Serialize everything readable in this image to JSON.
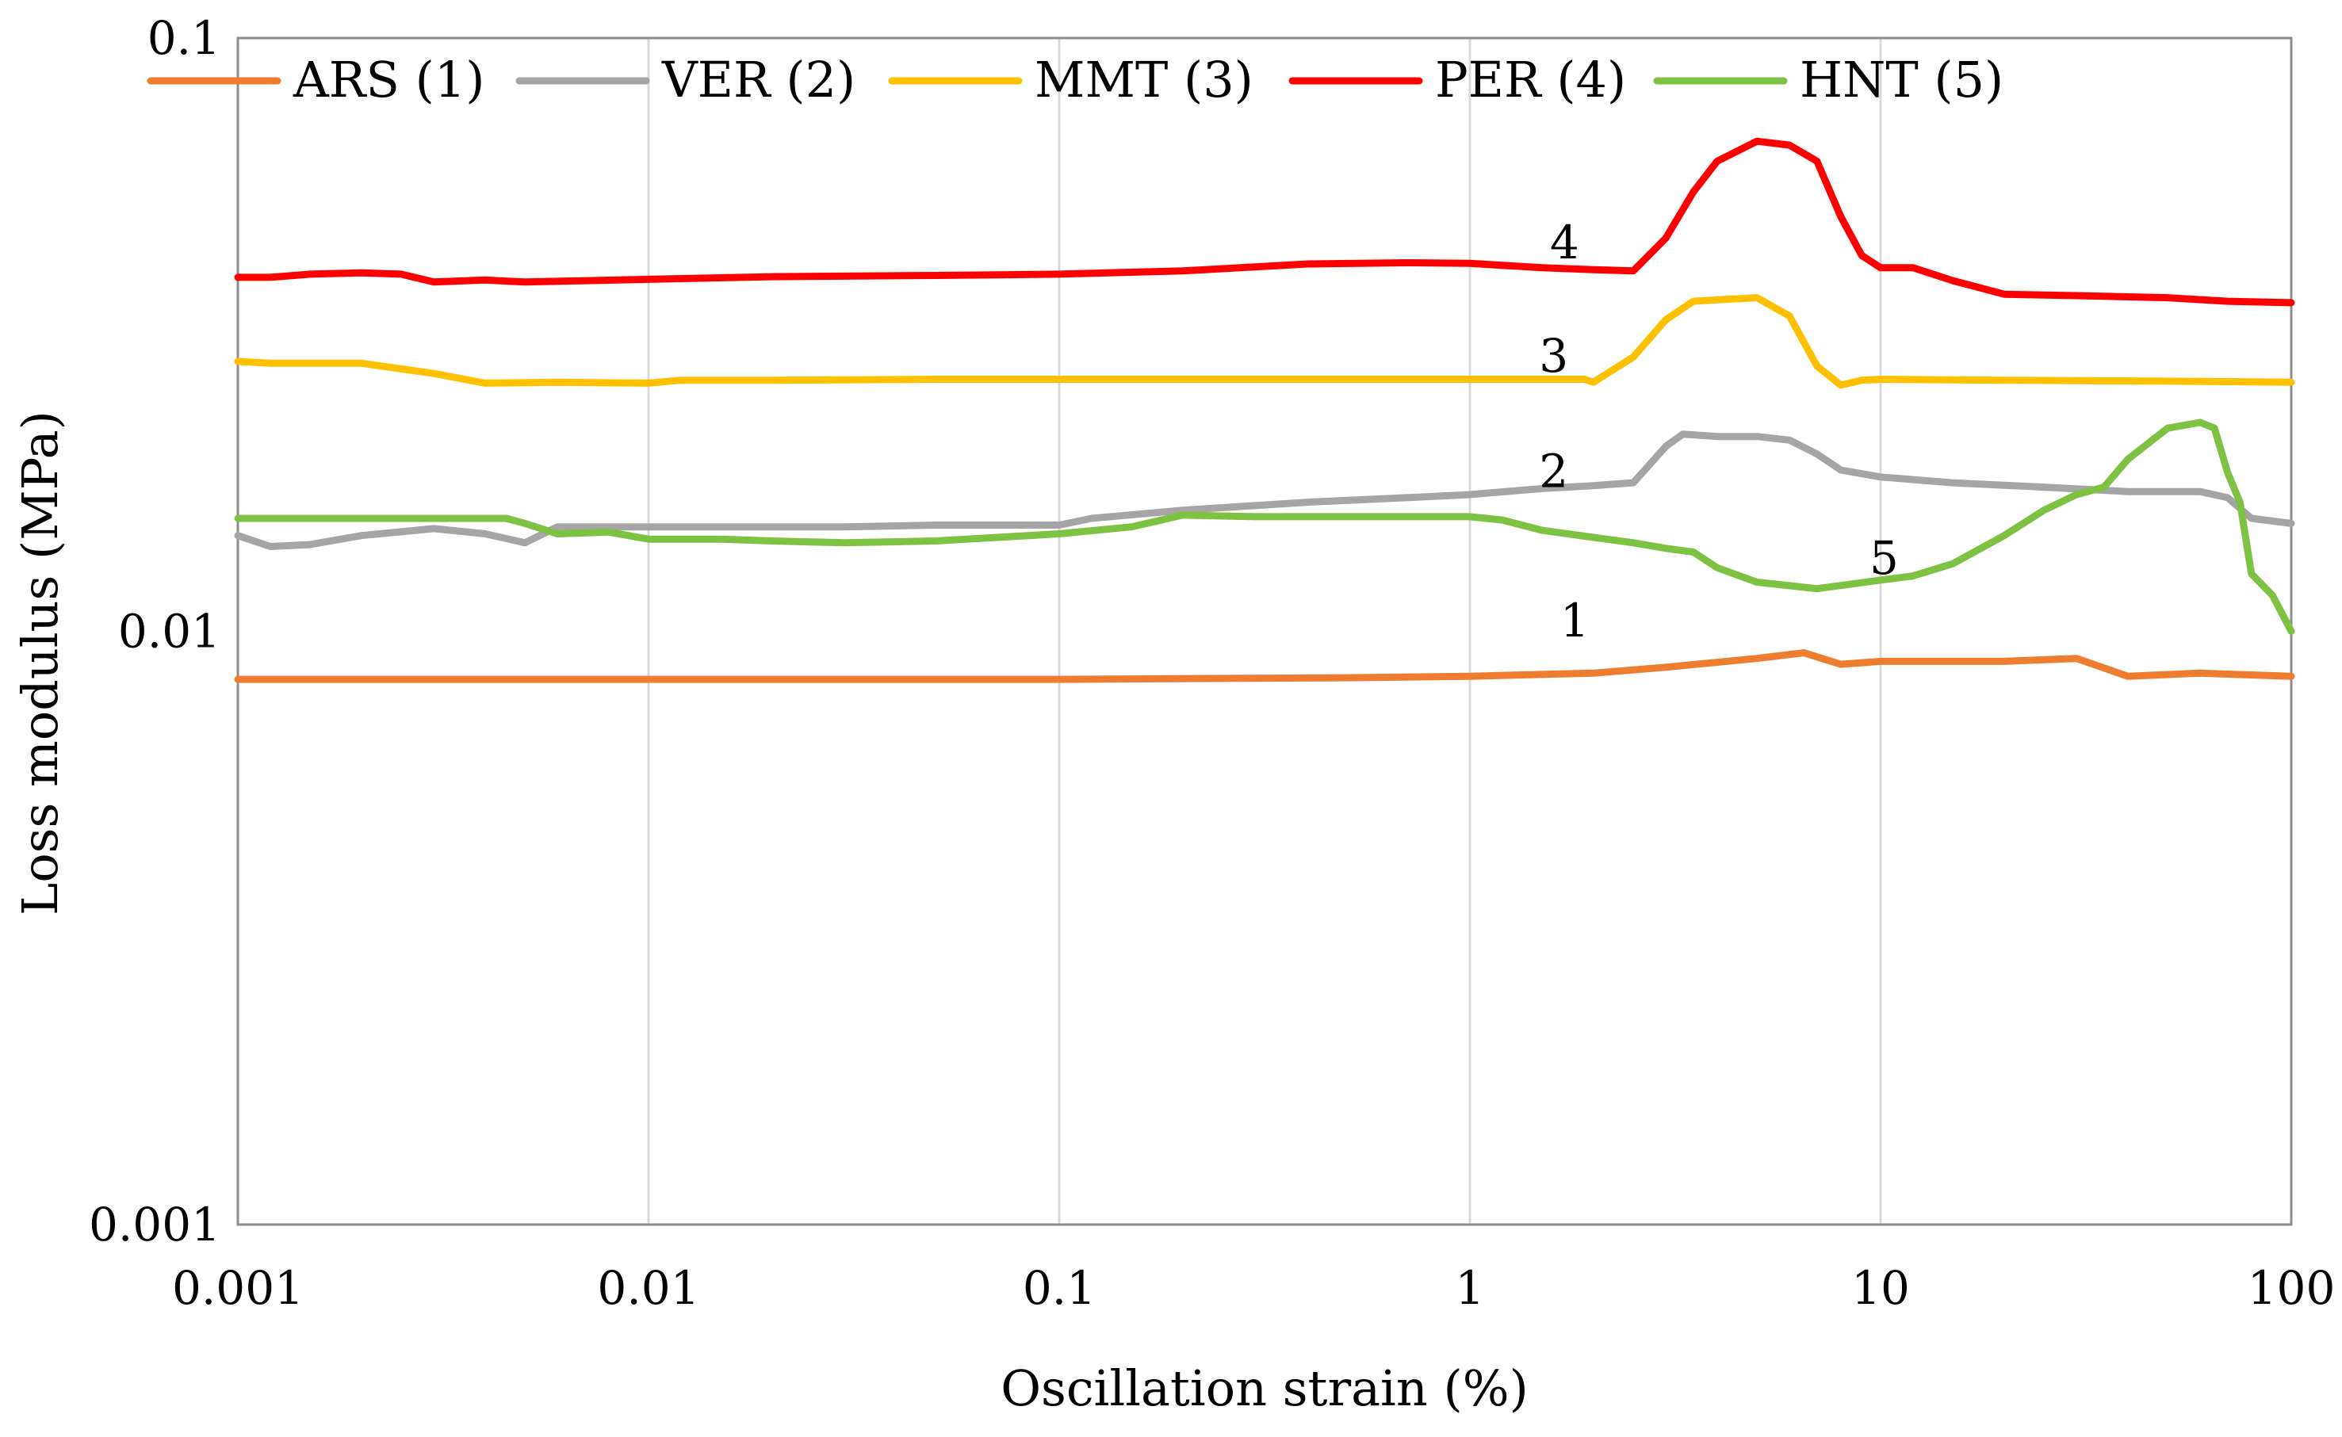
{
  "chart_data": {
    "type": "line",
    "xscale": "log",
    "yscale": "log",
    "xlim": [
      0.001,
      100
    ],
    "ylim": [
      0.001,
      0.1
    ],
    "xlabel": "Oscillation strain (%)",
    "ylabel": "Loss modulus (MPa)",
    "x_ticks": [
      0.001,
      0.01,
      0.1,
      1,
      10,
      100
    ],
    "x_tick_labels": [
      "0.001",
      "0.01",
      "0.1",
      "1",
      "10",
      "100"
    ],
    "y_ticks": [
      0.001,
      0.01,
      0.1
    ],
    "y_tick_labels": [
      "0.001",
      "0.01",
      "0.1"
    ],
    "grid": "vertical",
    "legend_position": "top",
    "series": [
      {
        "name": "ARS (1)",
        "color": "#ED7D31",
        "curve_label": "1",
        "label_at": [
          1.8,
          0.0098
        ],
        "points": [
          [
            0.001,
            0.0083
          ],
          [
            0.1,
            0.0083
          ],
          [
            0.5,
            0.00835
          ],
          [
            1,
            0.0084
          ],
          [
            2,
            0.0085
          ],
          [
            3,
            0.0087
          ],
          [
            5,
            0.009
          ],
          [
            6.5,
            0.0092
          ],
          [
            8,
            0.0088
          ],
          [
            10,
            0.0089
          ],
          [
            20,
            0.0089
          ],
          [
            30,
            0.009
          ],
          [
            40,
            0.0084
          ],
          [
            60,
            0.0085
          ],
          [
            100,
            0.0084
          ]
        ]
      },
      {
        "name": "VER (2)",
        "color": "#A5A5A5",
        "curve_label": "2",
        "label_at": [
          1.6,
          0.0175
        ],
        "points": [
          [
            0.001,
            0.0145
          ],
          [
            0.0012,
            0.0139
          ],
          [
            0.0015,
            0.014
          ],
          [
            0.002,
            0.0145
          ],
          [
            0.003,
            0.0149
          ],
          [
            0.004,
            0.0146
          ],
          [
            0.005,
            0.0141
          ],
          [
            0.006,
            0.015
          ],
          [
            0.01,
            0.015
          ],
          [
            0.03,
            0.015
          ],
          [
            0.05,
            0.0151
          ],
          [
            0.1,
            0.0151
          ],
          [
            0.12,
            0.0155
          ],
          [
            0.2,
            0.016
          ],
          [
            0.4,
            0.0165
          ],
          [
            0.7,
            0.0168
          ],
          [
            1,
            0.017
          ],
          [
            1.5,
            0.0174
          ],
          [
            2,
            0.0176
          ],
          [
            2.5,
            0.0178
          ],
          [
            3,
            0.0205
          ],
          [
            3.3,
            0.0215
          ],
          [
            4,
            0.0213
          ],
          [
            5,
            0.0213
          ],
          [
            6,
            0.021
          ],
          [
            7,
            0.0199
          ],
          [
            8,
            0.0187
          ],
          [
            10,
            0.0182
          ],
          [
            15,
            0.0178
          ],
          [
            25,
            0.0175
          ],
          [
            40,
            0.0172
          ],
          [
            60,
            0.0172
          ],
          [
            70,
            0.0168
          ],
          [
            80,
            0.0155
          ],
          [
            100,
            0.0152
          ]
        ]
      },
      {
        "name": "MMT (3)",
        "color": "#FFC000",
        "curve_label": "3",
        "label_at": [
          1.6,
          0.0274
        ],
        "points": [
          [
            0.001,
            0.0285
          ],
          [
            0.0012,
            0.0283
          ],
          [
            0.002,
            0.0283
          ],
          [
            0.003,
            0.0272
          ],
          [
            0.004,
            0.0262
          ],
          [
            0.006,
            0.0263
          ],
          [
            0.01,
            0.0262
          ],
          [
            0.012,
            0.0265
          ],
          [
            0.02,
            0.0265
          ],
          [
            0.05,
            0.0266
          ],
          [
            0.1,
            0.0266
          ],
          [
            1,
            0.0266
          ],
          [
            1.9,
            0.0266
          ],
          [
            2,
            0.0263
          ],
          [
            2.5,
            0.029
          ],
          [
            3,
            0.0335
          ],
          [
            3.5,
            0.036
          ],
          [
            4,
            0.0362
          ],
          [
            5,
            0.0365
          ],
          [
            6,
            0.034
          ],
          [
            7,
            0.028
          ],
          [
            8,
            0.026
          ],
          [
            9,
            0.0265
          ],
          [
            10,
            0.0266
          ],
          [
            20,
            0.0265
          ],
          [
            50,
            0.0264
          ],
          [
            100,
            0.0263
          ]
        ]
      },
      {
        "name": "PER (4)",
        "color": "#FF0000",
        "curve_label": "4",
        "label_at": [
          1.7,
          0.0425
        ],
        "points": [
          [
            0.001,
            0.0395
          ],
          [
            0.0012,
            0.0395
          ],
          [
            0.0015,
            0.04
          ],
          [
            0.002,
            0.0402
          ],
          [
            0.0025,
            0.04
          ],
          [
            0.003,
            0.0388
          ],
          [
            0.004,
            0.0391
          ],
          [
            0.005,
            0.0388
          ],
          [
            0.01,
            0.0392
          ],
          [
            0.02,
            0.0396
          ],
          [
            0.05,
            0.0398
          ],
          [
            0.1,
            0.04
          ],
          [
            0.2,
            0.0405
          ],
          [
            0.4,
            0.0416
          ],
          [
            0.7,
            0.0418
          ],
          [
            1,
            0.0417
          ],
          [
            1.5,
            0.041
          ],
          [
            2,
            0.0407
          ],
          [
            2.5,
            0.0405
          ],
          [
            3,
            0.046
          ],
          [
            3.5,
            0.055
          ],
          [
            4,
            0.062
          ],
          [
            5,
            0.067
          ],
          [
            6,
            0.066
          ],
          [
            7,
            0.062
          ],
          [
            8,
            0.05
          ],
          [
            9,
            0.043
          ],
          [
            10,
            0.041
          ],
          [
            12,
            0.041
          ],
          [
            15,
            0.039
          ],
          [
            20,
            0.037
          ],
          [
            30,
            0.0368
          ],
          [
            50,
            0.0365
          ],
          [
            70,
            0.036
          ],
          [
            100,
            0.0358
          ]
        ]
      },
      {
        "name": "HNT (5)",
        "color": "#7DC243",
        "curve_label": "5",
        "label_at": [
          10.2,
          0.0125
        ],
        "points": [
          [
            0.001,
            0.0155
          ],
          [
            0.002,
            0.0155
          ],
          [
            0.003,
            0.0155
          ],
          [
            0.0045,
            0.0155
          ],
          [
            0.005,
            0.0152
          ],
          [
            0.006,
            0.0146
          ],
          [
            0.008,
            0.0147
          ],
          [
            0.01,
            0.0143
          ],
          [
            0.015,
            0.0143
          ],
          [
            0.02,
            0.0142
          ],
          [
            0.03,
            0.0141
          ],
          [
            0.05,
            0.0142
          ],
          [
            0.1,
            0.0146
          ],
          [
            0.15,
            0.015
          ],
          [
            0.2,
            0.0157
          ],
          [
            0.3,
            0.0156
          ],
          [
            0.5,
            0.0156
          ],
          [
            1,
            0.0156
          ],
          [
            1.2,
            0.0154
          ],
          [
            1.5,
            0.0148
          ],
          [
            2,
            0.0144
          ],
          [
            2.5,
            0.0141
          ],
          [
            3,
            0.0138
          ],
          [
            3.5,
            0.0136
          ],
          [
            4,
            0.0128
          ],
          [
            5,
            0.0121
          ],
          [
            7,
            0.0118
          ],
          [
            10,
            0.0122
          ],
          [
            12,
            0.0124
          ],
          [
            15,
            0.013
          ],
          [
            20,
            0.0145
          ],
          [
            25,
            0.016
          ],
          [
            30,
            0.017
          ],
          [
            35,
            0.0175
          ],
          [
            40,
            0.0195
          ],
          [
            50,
            0.022
          ],
          [
            60,
            0.0225
          ],
          [
            65,
            0.022
          ],
          [
            70,
            0.0185
          ],
          [
            75,
            0.0165
          ],
          [
            80,
            0.0125
          ],
          [
            90,
            0.0115
          ],
          [
            100,
            0.01
          ]
        ]
      }
    ]
  }
}
